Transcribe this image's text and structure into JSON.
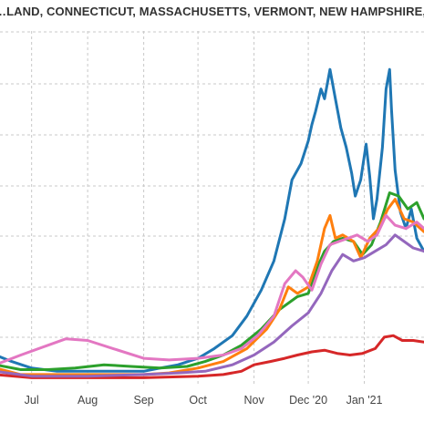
{
  "chart_data": {
    "type": "line",
    "title": "…LAND, CONNECTICUT, MASSACHUSETTS, VERMONT, NEW HAMPSHIRE, NEW YORK",
    "xlabel": "",
    "ylabel": "",
    "grid": true,
    "x_ticks": [
      "Jul",
      "Aug",
      "Sep",
      "Oct",
      "Nov",
      "Dec '20",
      "Jan '21"
    ],
    "x_start": "2020-06-11",
    "x_end": "2021-02-03",
    "ylim": [
      0,
      1
    ],
    "series": [
      {
        "color": "#1f77b4",
        "points": [
          [
            "2020-06-11",
            0.08
          ],
          [
            "2020-06-20",
            0.06
          ],
          [
            "2020-07-01",
            0.04
          ],
          [
            "2020-07-15",
            0.03
          ],
          [
            "2020-08-01",
            0.03
          ],
          [
            "2020-08-15",
            0.03
          ],
          [
            "2020-09-01",
            0.03
          ],
          [
            "2020-09-10",
            0.04
          ],
          [
            "2020-09-20",
            0.05
          ],
          [
            "2020-10-01",
            0.07
          ],
          [
            "2020-10-10",
            0.1
          ],
          [
            "2020-10-20",
            0.14
          ],
          [
            "2020-10-28",
            0.2
          ],
          [
            "2020-11-05",
            0.28
          ],
          [
            "2020-11-12",
            0.37
          ],
          [
            "2020-11-18",
            0.5
          ],
          [
            "2020-11-22",
            0.62
          ],
          [
            "2020-11-27",
            0.67
          ],
          [
            "2020-12-01",
            0.74
          ],
          [
            "2020-12-03",
            0.79
          ],
          [
            "2020-12-05",
            0.83
          ],
          [
            "2020-12-08",
            0.9
          ],
          [
            "2020-12-10",
            0.87
          ],
          [
            "2020-12-13",
            0.96
          ],
          [
            "2020-12-16",
            0.87
          ],
          [
            "2020-12-19",
            0.78
          ],
          [
            "2020-12-22",
            0.72
          ],
          [
            "2020-12-25",
            0.64
          ],
          [
            "2020-12-27",
            0.57
          ],
          [
            "2020-12-30",
            0.62
          ],
          [
            "2021-01-02",
            0.73
          ],
          [
            "2021-01-04",
            0.63
          ],
          [
            "2021-01-06",
            0.5
          ],
          [
            "2021-01-08",
            0.56
          ],
          [
            "2021-01-11",
            0.72
          ],
          [
            "2021-01-13",
            0.9
          ],
          [
            "2021-01-15",
            0.96
          ],
          [
            "2021-01-16",
            0.84
          ],
          [
            "2021-01-18",
            0.65
          ],
          [
            "2021-01-21",
            0.52
          ],
          [
            "2021-01-24",
            0.47
          ],
          [
            "2021-01-27",
            0.53
          ],
          [
            "2021-01-30",
            0.44
          ],
          [
            "2021-02-03",
            0.4
          ]
        ]
      },
      {
        "color": "#d62728",
        "points": [
          [
            "2020-06-11",
            0.02
          ],
          [
            "2020-07-01",
            0.01
          ],
          [
            "2020-08-01",
            0.01
          ],
          [
            "2020-09-01",
            0.01
          ],
          [
            "2020-10-01",
            0.015
          ],
          [
            "2020-10-15",
            0.02
          ],
          [
            "2020-10-25",
            0.03
          ],
          [
            "2020-11-01",
            0.05
          ],
          [
            "2020-11-10",
            0.06
          ],
          [
            "2020-11-18",
            0.07
          ],
          [
            "2020-11-25",
            0.08
          ],
          [
            "2020-12-03",
            0.09
          ],
          [
            "2020-12-10",
            0.095
          ],
          [
            "2020-12-17",
            0.085
          ],
          [
            "2020-12-24",
            0.08
          ],
          [
            "2020-12-31",
            0.085
          ],
          [
            "2021-01-07",
            0.1
          ],
          [
            "2021-01-12",
            0.135
          ],
          [
            "2021-01-17",
            0.14
          ],
          [
            "2021-01-22",
            0.125
          ],
          [
            "2021-01-28",
            0.125
          ],
          [
            "2021-02-03",
            0.12
          ]
        ]
      },
      {
        "color": "#2ca02c",
        "points": [
          [
            "2020-06-11",
            0.05
          ],
          [
            "2020-06-25",
            0.035
          ],
          [
            "2020-07-10",
            0.035
          ],
          [
            "2020-07-25",
            0.04
          ],
          [
            "2020-08-10",
            0.05
          ],
          [
            "2020-08-25",
            0.045
          ],
          [
            "2020-09-10",
            0.04
          ],
          [
            "2020-09-25",
            0.045
          ],
          [
            "2020-10-05",
            0.06
          ],
          [
            "2020-10-15",
            0.08
          ],
          [
            "2020-10-25",
            0.11
          ],
          [
            "2020-11-05",
            0.16
          ],
          [
            "2020-11-15",
            0.22
          ],
          [
            "2020-11-25",
            0.26
          ],
          [
            "2020-12-01",
            0.27
          ],
          [
            "2020-12-06",
            0.35
          ],
          [
            "2020-12-10",
            0.4
          ],
          [
            "2020-12-15",
            0.43
          ],
          [
            "2020-12-20",
            0.44
          ],
          [
            "2020-12-26",
            0.43
          ],
          [
            "2020-12-31",
            0.39
          ],
          [
            "2021-01-05",
            0.42
          ],
          [
            "2021-01-10",
            0.49
          ],
          [
            "2021-01-15",
            0.58
          ],
          [
            "2021-01-20",
            0.57
          ],
          [
            "2021-01-25",
            0.53
          ],
          [
            "2021-01-30",
            0.55
          ],
          [
            "2021-02-03",
            0.5
          ]
        ]
      },
      {
        "color": "#ff7f0e",
        "points": [
          [
            "2020-06-11",
            0.04
          ],
          [
            "2020-06-25",
            0.02
          ],
          [
            "2020-07-15",
            0.02
          ],
          [
            "2020-08-01",
            0.02
          ],
          [
            "2020-08-15",
            0.02
          ],
          [
            "2020-09-01",
            0.02
          ],
          [
            "2020-09-15",
            0.025
          ],
          [
            "2020-10-01",
            0.04
          ],
          [
            "2020-10-15",
            0.06
          ],
          [
            "2020-10-28",
            0.1
          ],
          [
            "2020-11-08",
            0.16
          ],
          [
            "2020-11-15",
            0.22
          ],
          [
            "2020-11-20",
            0.29
          ],
          [
            "2020-11-25",
            0.27
          ],
          [
            "2020-12-01",
            0.29
          ],
          [
            "2020-12-06",
            0.37
          ],
          [
            "2020-12-10",
            0.47
          ],
          [
            "2020-12-13",
            0.51
          ],
          [
            "2020-12-16",
            0.44
          ],
          [
            "2020-12-20",
            0.45
          ],
          [
            "2020-12-26",
            0.43
          ],
          [
            "2020-12-30",
            0.38
          ],
          [
            "2021-01-04",
            0.44
          ],
          [
            "2021-01-09",
            0.47
          ],
          [
            "2021-01-14",
            0.53
          ],
          [
            "2021-01-18",
            0.56
          ],
          [
            "2021-01-23",
            0.5
          ],
          [
            "2021-01-28",
            0.49
          ],
          [
            "2021-02-03",
            0.46
          ]
        ]
      },
      {
        "color": "#9467bd",
        "points": [
          [
            "2020-06-11",
            0.03
          ],
          [
            "2020-07-01",
            0.015
          ],
          [
            "2020-08-01",
            0.015
          ],
          [
            "2020-09-01",
            0.02
          ],
          [
            "2020-09-20",
            0.025
          ],
          [
            "2020-10-05",
            0.03
          ],
          [
            "2020-10-20",
            0.05
          ],
          [
            "2020-11-01",
            0.08
          ],
          [
            "2020-11-12",
            0.12
          ],
          [
            "2020-11-22",
            0.17
          ],
          [
            "2020-12-01",
            0.21
          ],
          [
            "2020-12-08",
            0.27
          ],
          [
            "2020-12-14",
            0.34
          ],
          [
            "2020-12-20",
            0.39
          ],
          [
            "2020-12-26",
            0.37
          ],
          [
            "2021-01-01",
            0.38
          ],
          [
            "2021-01-07",
            0.4
          ],
          [
            "2021-01-13",
            0.42
          ],
          [
            "2021-01-18",
            0.45
          ],
          [
            "2021-01-23",
            0.43
          ],
          [
            "2021-01-28",
            0.41
          ],
          [
            "2021-02-03",
            0.4
          ]
        ]
      },
      {
        "color": "#e377c2",
        "points": [
          [
            "2020-06-11",
            0.05
          ],
          [
            "2020-06-25",
            0.08
          ],
          [
            "2020-07-10",
            0.11
          ],
          [
            "2020-07-20",
            0.13
          ],
          [
            "2020-08-01",
            0.125
          ],
          [
            "2020-08-15",
            0.1
          ],
          [
            "2020-09-01",
            0.07
          ],
          [
            "2020-09-15",
            0.065
          ],
          [
            "2020-10-01",
            0.07
          ],
          [
            "2020-10-15",
            0.08
          ],
          [
            "2020-10-25",
            0.1
          ],
          [
            "2020-11-03",
            0.14
          ],
          [
            "2020-11-12",
            0.2
          ],
          [
            "2020-11-18",
            0.3
          ],
          [
            "2020-11-24",
            0.34
          ],
          [
            "2020-11-28",
            0.32
          ],
          [
            "2020-12-03",
            0.28
          ],
          [
            "2020-12-08",
            0.36
          ],
          [
            "2020-12-13",
            0.42
          ],
          [
            "2020-12-18",
            0.43
          ],
          [
            "2020-12-23",
            0.44
          ],
          [
            "2020-12-28",
            0.45
          ],
          [
            "2021-01-03",
            0.43
          ],
          [
            "2021-01-08",
            0.45
          ],
          [
            "2021-01-13",
            0.51
          ],
          [
            "2021-01-18",
            0.48
          ],
          [
            "2021-01-24",
            0.47
          ],
          [
            "2021-01-30",
            0.49
          ],
          [
            "2021-02-03",
            0.47
          ]
        ]
      }
    ]
  }
}
